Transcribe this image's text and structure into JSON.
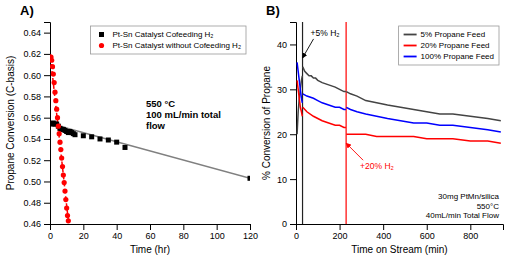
{
  "chart_data": [
    {
      "type": "scatter",
      "title": "A)",
      "annotations": [
        {
          "text": "550 °C\n100 mL/min total\nflow"
        }
      ],
      "x_label": "Time (hr)",
      "y_label": "Propane Conversion (C-basis)",
      "xlim": [
        0,
        120
      ],
      "ylim": [
        0.46,
        0.65
      ],
      "xticks": [
        0,
        20,
        40,
        60,
        80,
        100,
        120
      ],
      "yticks": [
        0.46,
        0.48,
        {
          "value": 0.5,
          "label": "0.50"
        },
        0.52,
        0.54,
        0.56,
        0.58,
        {
          "value": 0.6,
          "label": "0.60"
        },
        0.62,
        0.64
      ],
      "legend": "upper right",
      "series": [
        {
          "type": "line",
          "color": "gray",
          "x": [
            1,
            120
          ],
          "values": [
            0.554,
            0.503
          ]
        },
        {
          "type": "line",
          "color": "red",
          "line_style": "dashed",
          "x": [
            0.3,
            11.0
          ],
          "values": [
            0.617,
            0.463
          ]
        },
        {
          "name": "Pt-Sn Catalyst Cofeeding H₂",
          "color": "black",
          "marker": "square",
          "x": [
            1,
            2,
            3,
            4,
            5,
            6,
            7,
            8,
            9,
            10,
            11,
            12,
            13,
            14,
            15,
            20,
            25,
            30,
            35,
            40,
            45,
            120
          ],
          "values": [
            0.554,
            0.555,
            0.554,
            0.554,
            0.552,
            0.55,
            0.549,
            0.549,
            0.548,
            0.547,
            0.546,
            0.547,
            0.546,
            0.545,
            0.544,
            0.543,
            0.542,
            0.54,
            0.539,
            0.537,
            0.532,
            0.503
          ]
        },
        {
          "name": "Pt-Sn Catalyst without Cofeeding H₂",
          "color": "red",
          "marker": "circle",
          "x": [
            0.3,
            0.6,
            1.0,
            1.5,
            2.0,
            2.5,
            3.0,
            3.5,
            4.0,
            4.5,
            5.0,
            5.5,
            6.0,
            6.5,
            7.0,
            7.5,
            8.0,
            8.5,
            9.0,
            9.5,
            10.0,
            10.5,
            11.0
          ],
          "values": [
            0.617,
            0.617,
            0.614,
            0.608,
            0.601,
            0.593,
            0.584,
            0.576,
            0.568,
            0.56,
            0.552,
            0.545,
            0.537,
            0.53,
            0.522,
            0.514,
            0.506,
            0.499,
            0.491,
            0.483,
            0.475,
            0.468,
            0.463
          ]
        }
      ]
    },
    {
      "type": "line",
      "title": "B)",
      "annotations": [
        {
          "text": "30mg PtMn/silica\n550°C\n40mL/min Total Flow"
        },
        {
          "text": "+5% H₂",
          "x": 30,
          "y": 37,
          "color": "black"
        },
        {
          "text": "+20% H₂",
          "x": 230,
          "y": 18,
          "color": "red"
        }
      ],
      "x_label": "Time on Stream (min)",
      "y_label": "% Conversion of Propane",
      "xlim": [
        0,
        950
      ],
      "ylim": [
        0,
        45
      ],
      "xticks": [
        0,
        200,
        400,
        600,
        800
      ],
      "yticks": [
        0,
        10,
        20,
        30,
        40
      ],
      "legend": "upper right",
      "vlines": [
        {
          "x": 30,
          "color": "#222222"
        },
        {
          "x": 230,
          "color": "red"
        }
      ],
      "series": [
        {
          "name": "5% Propane Feed",
          "color": "#444444",
          "x": [
            5,
            10,
            15,
            20,
            25,
            29,
            null,
            31,
            40,
            50,
            60,
            70,
            80,
            90,
            100,
            120,
            150,
            180,
            200,
            220,
            229,
            null,
            231,
            250,
            280,
            320,
            370,
            420,
            480,
            540,
            600,
            660,
            720,
            800,
            880,
            940
          ],
          "values": [
            20,
            25,
            28,
            30,
            32,
            33,
            null,
            35,
            34,
            33.5,
            33,
            33,
            32.5,
            32.5,
            32,
            31.5,
            31,
            30.5,
            30,
            29.5,
            29.5,
            null,
            29.5,
            29,
            28.5,
            27.5,
            27,
            26.5,
            26,
            25.5,
            25,
            24.5,
            24.5,
            24,
            23.5,
            23
          ]
        },
        {
          "name": "20% Propane Feed",
          "color": "red",
          "x": [
            5,
            10,
            15,
            20,
            25,
            29,
            null,
            31,
            50,
            80,
            100,
            120,
            150,
            180,
            200,
            220,
            229,
            null,
            231,
            250,
            280,
            320,
            370,
            420,
            480,
            540,
            600,
            660,
            720,
            800,
            880,
            940
          ],
          "values": [
            32,
            30,
            28,
            26,
            25,
            24,
            null,
            26,
            25,
            24,
            23.5,
            23,
            22.5,
            22,
            22,
            21.5,
            21.5,
            null,
            20,
            20,
            20,
            20,
            19.5,
            19.5,
            19.5,
            19.5,
            19,
            19,
            19,
            18.5,
            18.5,
            18
          ]
        },
        {
          "name": "100% Propane Feed",
          "color": "blue",
          "x": [
            5,
            10,
            15,
            20,
            25,
            29,
            null,
            31,
            50,
            80,
            100,
            120,
            150,
            180,
            200,
            220,
            229,
            null,
            231,
            250,
            280,
            320,
            370,
            420,
            480,
            540,
            600,
            660,
            720,
            800,
            880,
            940
          ],
          "values": [
            36,
            34,
            32,
            30,
            28,
            27,
            null,
            29,
            28.5,
            28,
            27.5,
            27,
            26.5,
            26,
            26,
            25.5,
            25.5,
            null,
            26,
            25.5,
            25,
            24.5,
            24,
            23.5,
            23,
            22.5,
            22.5,
            22,
            22,
            21.5,
            21,
            20.5
          ]
        }
      ]
    }
  ]
}
